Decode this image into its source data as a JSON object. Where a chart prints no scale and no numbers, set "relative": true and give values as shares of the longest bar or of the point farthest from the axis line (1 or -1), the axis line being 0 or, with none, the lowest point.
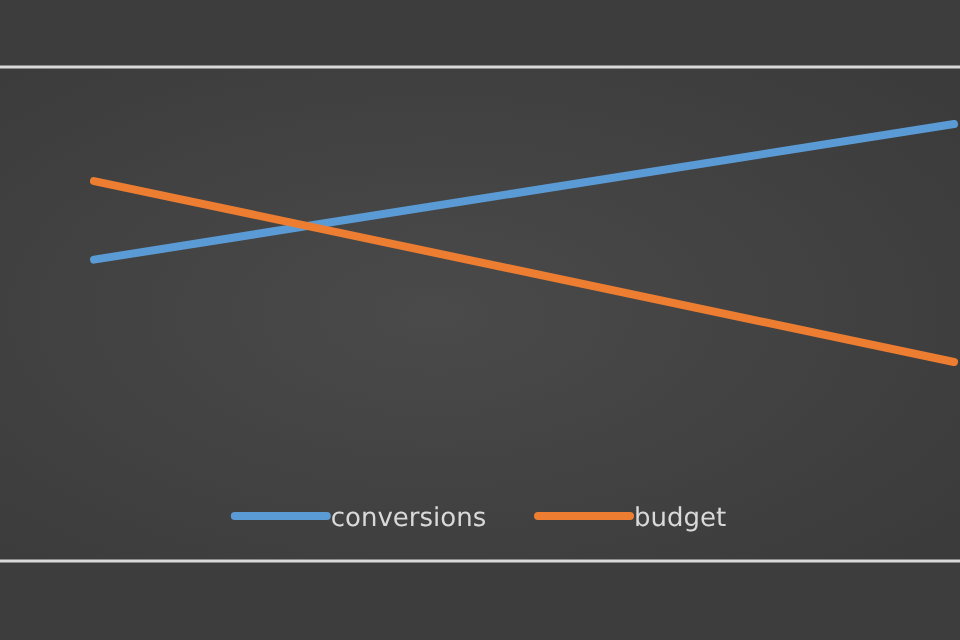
{
  "chart_data": {
    "type": "line",
    "relative": true,
    "categories": [
      null,
      null
    ],
    "series": [
      {
        "name": "conversions",
        "color": "#5b9bd5",
        "values": [
          0.43,
          1
        ]
      },
      {
        "name": "budget",
        "color": "#ed7d31",
        "values": [
          0.76,
          0
        ]
      }
    ],
    "legend": "bottom",
    "marker": "none",
    "line_style": "solid"
  }
}
